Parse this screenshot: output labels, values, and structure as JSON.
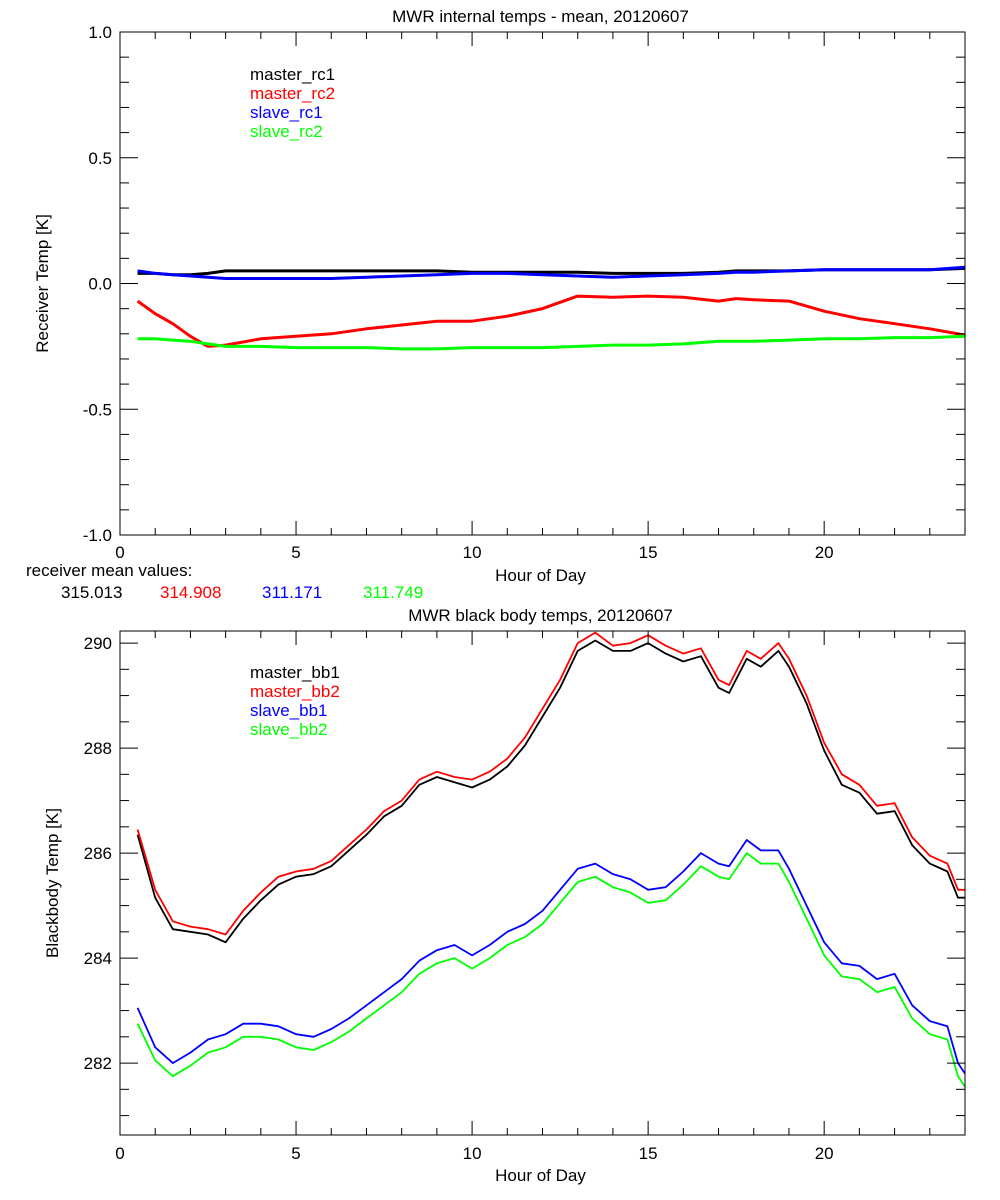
{
  "chart_data": [
    {
      "type": "line",
      "title": "MWR internal temps - mean, 20120607",
      "xlabel": "Hour of Day",
      "ylabel": "Receiver Temp [K]",
      "xlim": [
        0,
        24
      ],
      "ylim": [
        -1.0,
        1.0
      ],
      "xticks": [
        "0",
        "5",
        "10",
        "15",
        "20"
      ],
      "xtick_values": [
        0,
        5,
        10,
        15,
        20
      ],
      "yticks": [
        "-1.0",
        "-0.5",
        "0.0",
        "0.5",
        "1.0"
      ],
      "ytick_values": [
        -1.0,
        -0.5,
        0.0,
        0.5,
        1.0
      ],
      "x_minor_step": 1,
      "y_minor_step": 0.1,
      "grid": false,
      "legend_placement": "top-left",
      "x": [
        0.5,
        1,
        1.5,
        2,
        2.5,
        3,
        4,
        5,
        6,
        7,
        8,
        9,
        10,
        11,
        12,
        13,
        14,
        15,
        16,
        17,
        17.5,
        18,
        19,
        20,
        21,
        22,
        23,
        24
      ],
      "series": [
        {
          "name": "master_rc1",
          "color": "#000000",
          "values": [
            0.04,
            0.04,
            0.035,
            0.035,
            0.04,
            0.05,
            0.05,
            0.05,
            0.05,
            0.05,
            0.05,
            0.05,
            0.045,
            0.045,
            0.045,
            0.045,
            0.04,
            0.04,
            0.04,
            0.045,
            0.05,
            0.05,
            0.05,
            0.055,
            0.055,
            0.055,
            0.055,
            0.06
          ]
        },
        {
          "name": "master_rc2",
          "color": "#ff0000",
          "values": [
            -0.07,
            -0.12,
            -0.16,
            -0.21,
            -0.25,
            -0.245,
            -0.22,
            -0.21,
            -0.2,
            -0.18,
            -0.165,
            -0.15,
            -0.15,
            -0.13,
            -0.1,
            -0.05,
            -0.055,
            -0.05,
            -0.055,
            -0.07,
            -0.06,
            -0.065,
            -0.07,
            -0.11,
            -0.14,
            -0.16,
            -0.18,
            -0.205
          ]
        },
        {
          "name": "slave_rc1",
          "color": "#0000ff",
          "values": [
            0.05,
            0.04,
            0.035,
            0.03,
            0.025,
            0.02,
            0.02,
            0.02,
            0.02,
            0.025,
            0.03,
            0.035,
            0.04,
            0.04,
            0.035,
            0.03,
            0.025,
            0.03,
            0.035,
            0.04,
            0.045,
            0.045,
            0.05,
            0.055,
            0.055,
            0.055,
            0.055,
            0.065
          ]
        },
        {
          "name": "slave_rc2",
          "color": "#00ff00",
          "values": [
            -0.22,
            -0.22,
            -0.225,
            -0.23,
            -0.24,
            -0.25,
            -0.25,
            -0.255,
            -0.255,
            -0.255,
            -0.26,
            -0.26,
            -0.255,
            -0.255,
            -0.255,
            -0.25,
            -0.245,
            -0.245,
            -0.24,
            -0.23,
            -0.23,
            -0.23,
            -0.225,
            -0.22,
            -0.22,
            -0.215,
            -0.215,
            -0.21
          ]
        }
      ],
      "footer_label": "receiver mean values:",
      "mean_values": [
        {
          "value": "315.013",
          "color": "#000000"
        },
        {
          "value": "314.908",
          "color": "#ff0000"
        },
        {
          "value": "311.171",
          "color": "#0000ff"
        },
        {
          "value": "311.749",
          "color": "#00ff00"
        }
      ]
    },
    {
      "type": "line",
      "title": "MWR black body temps, 20120607",
      "xlabel": "Hour of Day",
      "ylabel": "Blackbody Temp [K]",
      "xlim": [
        0,
        24
      ],
      "ylim": [
        280.63,
        290.23
      ],
      "xticks": [
        "0",
        "5",
        "10",
        "15",
        "20"
      ],
      "xtick_values": [
        0,
        5,
        10,
        15,
        20
      ],
      "yticks": [
        "282",
        "284",
        "286",
        "288",
        "290"
      ],
      "ytick_values": [
        282,
        284,
        286,
        288,
        290
      ],
      "x_minor_step": 1,
      "y_minor_step": 0.5,
      "grid": false,
      "legend_placement": "top-left",
      "x": [
        0.5,
        1,
        1.5,
        2,
        2.5,
        3,
        3.5,
        4,
        4.5,
        5,
        5.5,
        6,
        6.5,
        7,
        7.5,
        8,
        8.5,
        9,
        9.5,
        10,
        10.5,
        11,
        11.5,
        12,
        12.5,
        13,
        13.5,
        14,
        14.5,
        15,
        15.5,
        16,
        16.5,
        17,
        17.3,
        17.8,
        18.2,
        18.7,
        19,
        19.5,
        20,
        20.5,
        21,
        21.5,
        22,
        22.5,
        23,
        23.5,
        23.8,
        24
      ],
      "series": [
        {
          "name": "master_bb1",
          "color": "#000000",
          "values": [
            286.35,
            285.15,
            284.55,
            284.5,
            284.45,
            284.3,
            284.75,
            285.1,
            285.4,
            285.55,
            285.6,
            285.75,
            286.05,
            286.35,
            286.7,
            286.9,
            287.3,
            287.45,
            287.35,
            287.25,
            287.4,
            287.65,
            288.05,
            288.6,
            289.15,
            289.85,
            290.05,
            289.85,
            289.85,
            290.0,
            289.8,
            289.65,
            289.75,
            289.15,
            289.05,
            289.7,
            289.55,
            289.85,
            289.55,
            288.85,
            287.95,
            287.3,
            287.15,
            286.75,
            286.8,
            286.15,
            285.8,
            285.65,
            285.15,
            285.15
          ]
        },
        {
          "name": "master_bb2",
          "color": "#ff0000",
          "values": [
            286.45,
            285.3,
            284.7,
            284.6,
            284.55,
            284.45,
            284.9,
            285.25,
            285.55,
            285.65,
            285.7,
            285.85,
            286.15,
            286.45,
            286.8,
            287.0,
            287.4,
            287.55,
            287.45,
            287.4,
            287.55,
            287.8,
            288.2,
            288.75,
            289.3,
            290.0,
            290.2,
            289.95,
            290.0,
            290.15,
            289.95,
            289.8,
            289.9,
            289.3,
            289.2,
            289.85,
            289.7,
            290.0,
            289.7,
            289.0,
            288.1,
            287.5,
            287.3,
            286.9,
            286.95,
            286.3,
            285.95,
            285.8,
            285.3,
            285.3
          ]
        },
        {
          "name": "slave_bb1",
          "color": "#0000ff",
          "values": [
            283.05,
            282.3,
            282.0,
            282.2,
            282.45,
            282.55,
            282.75,
            282.75,
            282.7,
            282.55,
            282.5,
            282.65,
            282.85,
            283.1,
            283.35,
            283.6,
            283.95,
            284.15,
            284.25,
            284.05,
            284.25,
            284.5,
            284.65,
            284.9,
            285.3,
            285.7,
            285.8,
            285.6,
            285.5,
            285.3,
            285.35,
            285.65,
            286.0,
            285.8,
            285.75,
            286.25,
            286.05,
            286.05,
            285.7,
            285.0,
            284.3,
            283.9,
            283.85,
            283.6,
            283.7,
            283.1,
            282.8,
            282.7,
            282.0,
            281.8
          ]
        },
        {
          "name": "slave_bb2",
          "color": "#00ff00",
          "values": [
            282.75,
            282.05,
            281.75,
            281.95,
            282.2,
            282.3,
            282.5,
            282.5,
            282.45,
            282.3,
            282.25,
            282.4,
            282.6,
            282.85,
            283.1,
            283.35,
            283.7,
            283.9,
            284.0,
            283.8,
            284.0,
            284.25,
            284.4,
            284.65,
            285.05,
            285.45,
            285.55,
            285.35,
            285.25,
            285.05,
            285.1,
            285.4,
            285.75,
            285.55,
            285.5,
            286.0,
            285.8,
            285.8,
            285.45,
            284.75,
            284.05,
            283.65,
            283.6,
            283.35,
            283.45,
            282.85,
            282.55,
            282.45,
            281.75,
            281.55
          ]
        }
      ]
    }
  ]
}
